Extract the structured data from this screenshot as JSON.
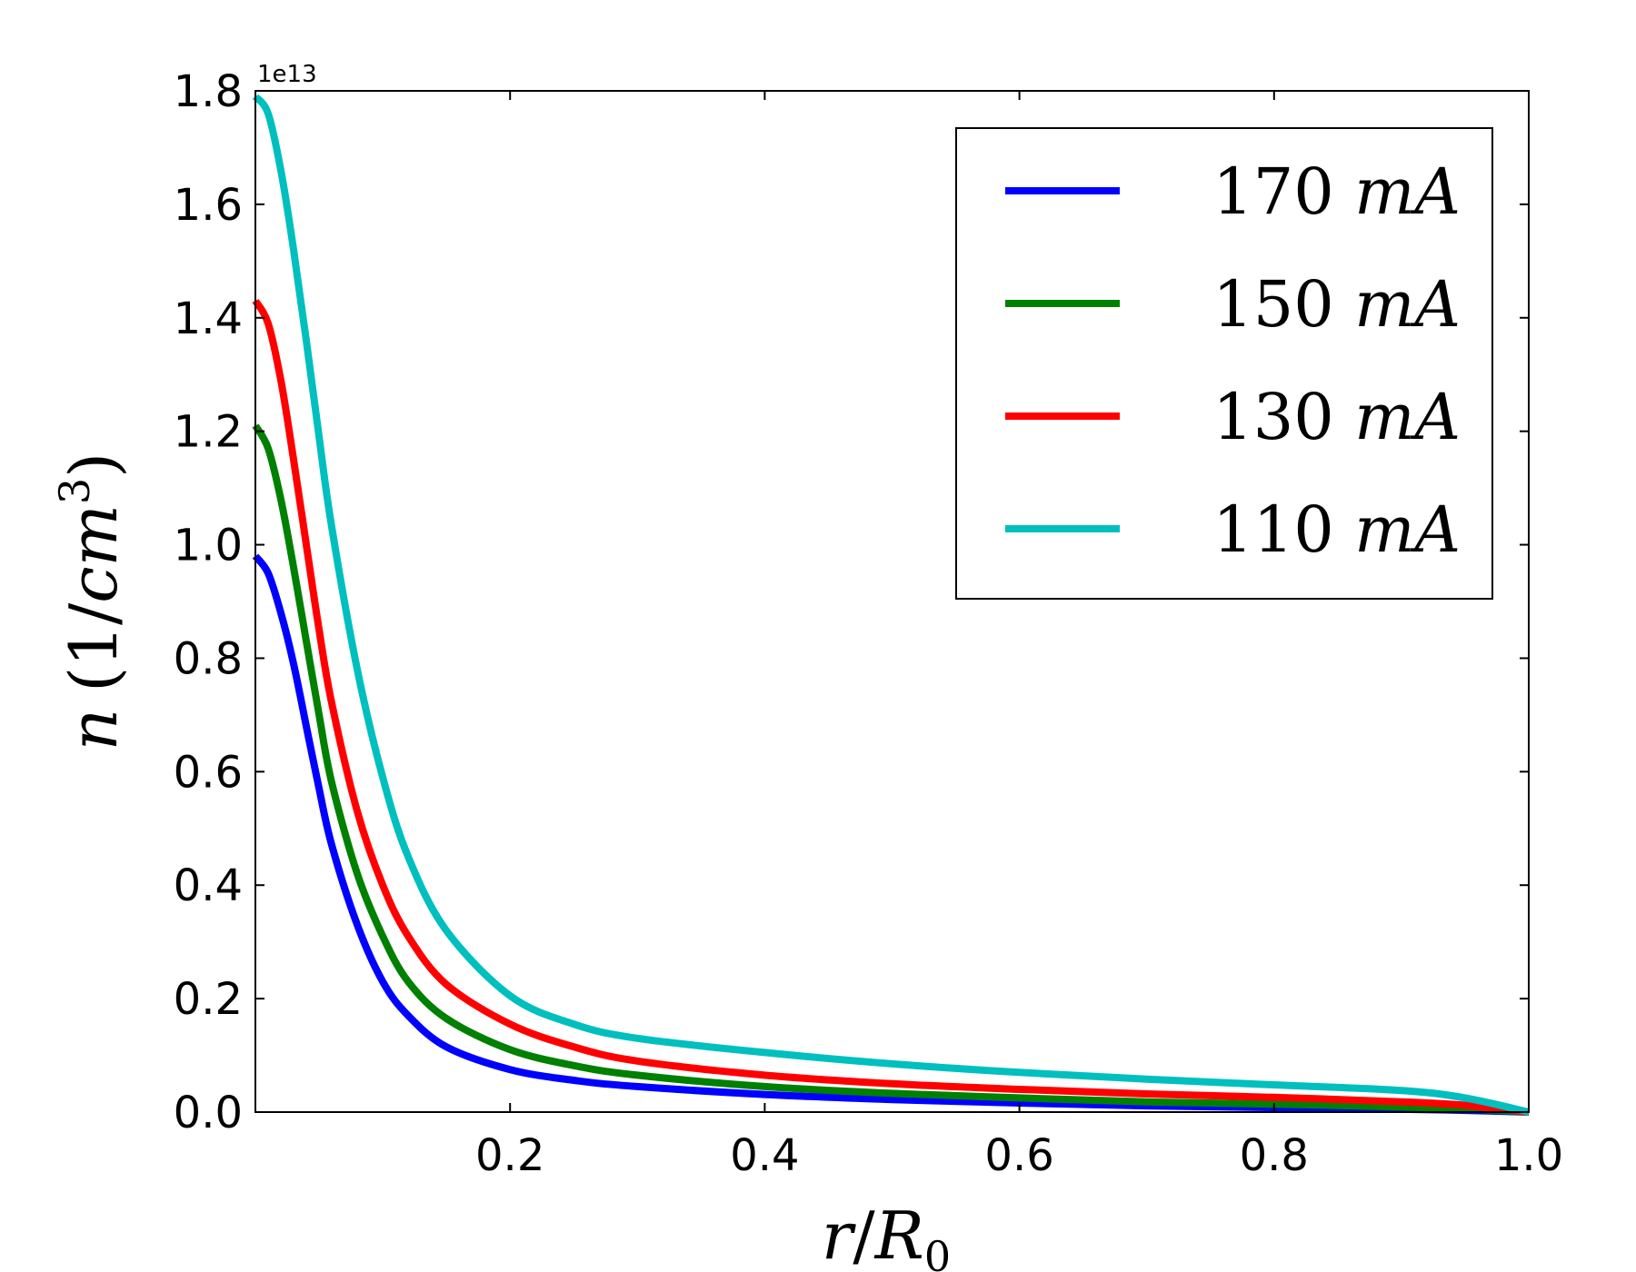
{
  "chart_data": {
    "type": "line",
    "title": "",
    "xlabel": "r/R0",
    "xlabel_parts": {
      "num": "r",
      "slash": "/",
      "base": "R",
      "sub": "0"
    },
    "ylabel": "n (1/cm^3)",
    "ylabel_parts": {
      "var": "n",
      "open": "(",
      "one": "1/",
      "unit": "cm",
      "exp": "3",
      "close": ")"
    },
    "y_offset_text": "1e13",
    "xlim": [
      0.0,
      1.0
    ],
    "ylim": [
      0.0,
      1.8
    ],
    "x_ticks": [
      {
        "value": 0.2,
        "label": "0.2"
      },
      {
        "value": 0.4,
        "label": "0.4"
      },
      {
        "value": 0.6,
        "label": "0.6"
      },
      {
        "value": 0.8,
        "label": "0.8"
      },
      {
        "value": 1.0,
        "label": "1.0"
      }
    ],
    "y_ticks": [
      {
        "value": 0.0,
        "label": "0.0"
      },
      {
        "value": 0.2,
        "label": "0.2"
      },
      {
        "value": 0.4,
        "label": "0.4"
      },
      {
        "value": 0.6,
        "label": "0.6"
      },
      {
        "value": 0.8,
        "label": "0.8"
      },
      {
        "value": 1.0,
        "label": "1.0"
      },
      {
        "value": 1.2,
        "label": "1.2"
      },
      {
        "value": 1.4,
        "label": "1.4"
      },
      {
        "value": 1.6,
        "label": "1.6"
      },
      {
        "value": 1.8,
        "label": "1.8"
      }
    ],
    "grid": false,
    "legend_position": "top-right",
    "x": [
      0.0,
      0.01,
      0.02,
      0.03,
      0.04,
      0.05,
      0.06,
      0.08,
      0.1,
      0.12,
      0.15,
      0.2,
      0.25,
      0.3,
      0.4,
      0.5,
      0.6,
      0.7,
      0.8,
      0.9,
      0.95,
      1.0
    ],
    "series": [
      {
        "name": "170",
        "unit": "mA",
        "color": "#0000ff",
        "values": [
          0.98,
          0.95,
          0.88,
          0.79,
          0.68,
          0.57,
          0.47,
          0.33,
          0.23,
          0.17,
          0.115,
          0.075,
          0.056,
          0.045,
          0.031,
          0.022,
          0.016,
          0.011,
          0.008,
          0.005,
          0.003,
          0.0
        ]
      },
      {
        "name": "150",
        "unit": "mA",
        "color": "#008000",
        "values": [
          1.21,
          1.17,
          1.08,
          0.96,
          0.83,
          0.7,
          0.58,
          0.42,
          0.31,
          0.23,
          0.165,
          0.11,
          0.082,
          0.065,
          0.045,
          0.033,
          0.025,
          0.018,
          0.014,
          0.009,
          0.006,
          0.0
        ]
      },
      {
        "name": "130",
        "unit": "mA",
        "color": "#ff0000",
        "values": [
          1.43,
          1.39,
          1.29,
          1.15,
          1.0,
          0.85,
          0.72,
          0.53,
          0.4,
          0.31,
          0.225,
          0.155,
          0.115,
          0.09,
          0.065,
          0.05,
          0.04,
          0.032,
          0.026,
          0.018,
          0.012,
          0.0
        ]
      },
      {
        "name": "110",
        "unit": "mA",
        "color": "#00bfbf",
        "values": [
          1.79,
          1.76,
          1.66,
          1.52,
          1.36,
          1.19,
          1.03,
          0.78,
          0.59,
          0.45,
          0.32,
          0.205,
          0.155,
          0.13,
          0.105,
          0.085,
          0.07,
          0.058,
          0.048,
          0.038,
          0.025,
          0.0
        ]
      }
    ]
  }
}
